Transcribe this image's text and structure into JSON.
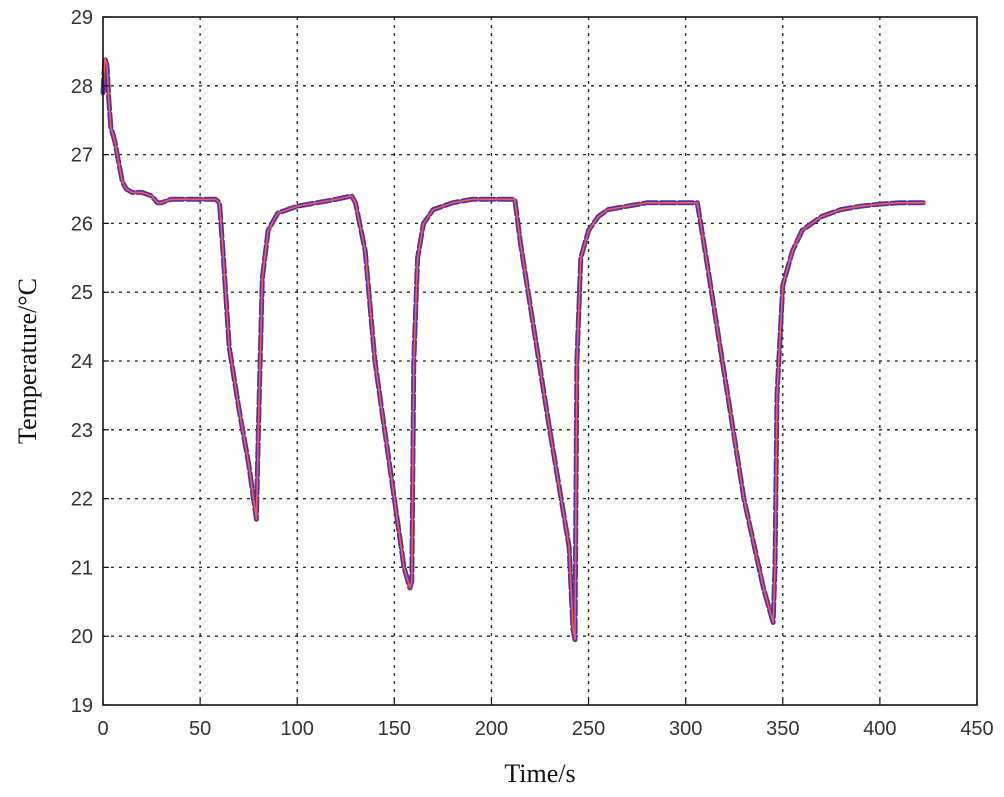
{
  "chart_data": {
    "type": "line",
    "xlabel": "Time/s",
    "ylabel": "Temperature/°C",
    "xlim": [
      0,
      450
    ],
    "ylim": [
      19,
      29
    ],
    "xticks": [
      0,
      50,
      100,
      150,
      200,
      250,
      300,
      350,
      400,
      450
    ],
    "yticks": [
      19,
      20,
      21,
      22,
      23,
      24,
      25,
      26,
      27,
      28,
      29
    ],
    "grid": true,
    "series": [
      {
        "color": "#5a2e9e",
        "style": "dashed",
        "x": [
          0,
          1,
          2,
          3,
          4,
          6,
          8,
          10,
          12,
          15,
          20,
          25,
          28,
          30,
          35,
          40,
          50,
          58,
          60,
          62,
          65,
          70,
          75,
          78,
          79,
          80,
          82,
          85,
          90,
          100,
          110,
          120,
          128,
          130,
          135,
          140,
          150,
          155,
          158,
          159,
          160,
          162,
          165,
          170,
          180,
          190,
          200,
          212,
          215,
          220,
          230,
          240,
          242,
          243,
          244,
          246,
          250,
          255,
          260,
          270,
          280,
          290,
          300,
          306,
          310,
          320,
          330,
          340,
          345,
          346,
          347,
          350,
          355,
          360,
          370,
          380,
          390,
          400,
          410,
          420,
          423
        ],
        "y": [
          27.9,
          28.4,
          28.3,
          27.8,
          27.4,
          27.2,
          26.9,
          26.6,
          26.5,
          26.45,
          26.45,
          26.4,
          26.3,
          26.3,
          26.35,
          26.35,
          26.35,
          26.35,
          26.3,
          25.5,
          24.2,
          23.3,
          22.5,
          21.9,
          21.7,
          23.0,
          25.2,
          25.9,
          26.15,
          26.25,
          26.3,
          26.35,
          26.4,
          26.3,
          25.6,
          24.0,
          22.0,
          21.0,
          20.7,
          20.8,
          24.0,
          25.5,
          26.0,
          26.2,
          26.3,
          26.35,
          26.35,
          26.35,
          25.7,
          24.8,
          23.0,
          21.3,
          20.1,
          19.95,
          24.0,
          25.5,
          25.9,
          26.1,
          26.2,
          26.25,
          26.3,
          26.3,
          26.3,
          26.3,
          25.6,
          23.8,
          22.0,
          20.7,
          20.2,
          21.0,
          23.5,
          25.1,
          25.6,
          25.9,
          26.1,
          26.2,
          26.25,
          26.28,
          26.3,
          26.3,
          26.3
        ]
      },
      {
        "color": "#e8605a",
        "style": "solid",
        "x": [
          0,
          1,
          2,
          3,
          4,
          6,
          8,
          10,
          12,
          15,
          20,
          25,
          28,
          30,
          35,
          40,
          50,
          58,
          60,
          62,
          65,
          70,
          75,
          78,
          79,
          80,
          82,
          85,
          90,
          100,
          110,
          120,
          128,
          130,
          135,
          140,
          150,
          155,
          158,
          159,
          160,
          162,
          165,
          170,
          180,
          190,
          200,
          212,
          215,
          220,
          230,
          240,
          242,
          243,
          244,
          246,
          250,
          255,
          260,
          270,
          280,
          290,
          300,
          306,
          310,
          320,
          330,
          340,
          345,
          346,
          347,
          350,
          355,
          360,
          370,
          380,
          390,
          400,
          410,
          420,
          423
        ],
        "y": [
          27.9,
          28.4,
          28.3,
          27.8,
          27.4,
          27.2,
          26.9,
          26.6,
          26.5,
          26.45,
          26.45,
          26.4,
          26.3,
          26.3,
          26.35,
          26.35,
          26.35,
          26.35,
          26.3,
          25.5,
          24.2,
          23.3,
          22.5,
          21.9,
          21.7,
          23.0,
          25.2,
          25.9,
          26.15,
          26.25,
          26.3,
          26.35,
          26.4,
          26.3,
          25.6,
          24.0,
          22.0,
          21.0,
          20.7,
          20.8,
          24.0,
          25.5,
          26.0,
          26.2,
          26.3,
          26.35,
          26.35,
          26.35,
          25.7,
          24.8,
          23.0,
          21.3,
          20.1,
          19.95,
          24.0,
          25.5,
          25.9,
          26.1,
          26.2,
          26.25,
          26.3,
          26.3,
          26.3,
          26.3,
          25.6,
          23.8,
          22.0,
          20.7,
          20.2,
          21.0,
          23.5,
          25.1,
          25.6,
          25.9,
          26.1,
          26.2,
          26.25,
          26.28,
          26.3,
          26.3,
          26.3
        ]
      }
    ]
  }
}
